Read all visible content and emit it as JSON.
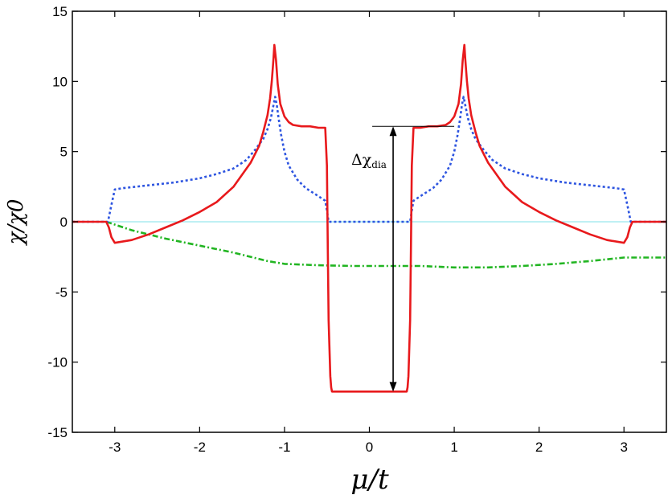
{
  "chart_data": {
    "type": "line",
    "title": "",
    "xlabel": "μ/t",
    "ylabel": "χ/χ0",
    "xlim": [
      -3.5,
      3.5
    ],
    "ylim": [
      -15,
      15
    ],
    "x_ticks": [
      -3,
      -2,
      -1,
      0,
      1,
      2,
      3
    ],
    "y_ticks": [
      -15,
      -10,
      -5,
      0,
      5,
      10,
      15
    ],
    "x_tick_labels": [
      "-3",
      "-2",
      "-1",
      "0",
      "1",
      "2",
      "3"
    ],
    "y_tick_labels": [
      "-15",
      "-10",
      "-5",
      "0",
      "5",
      "10",
      "15"
    ],
    "grid": false,
    "annotation": {
      "symbol": "Δχ",
      "subscript": "dia",
      "x": 0.28,
      "y_top": 6.8,
      "y_bottom": -12.1
    },
    "series": [
      {
        "color": "#e8191c",
        "style": "solid",
        "x": [
          -3.5,
          -3.1,
          -3.07,
          -3.04,
          -3.0,
          -2.8,
          -2.6,
          -2.4,
          -2.2,
          -2.0,
          -1.8,
          -1.6,
          -1.4,
          -1.3,
          -1.25,
          -1.2,
          -1.17,
          -1.15,
          -1.13,
          -1.12,
          -1.1,
          -1.08,
          -1.05,
          -1.0,
          -0.95,
          -0.9,
          -0.8,
          -0.7,
          -0.6,
          -0.52,
          -0.5,
          -0.49,
          -0.48,
          -0.46,
          -0.45,
          -0.44,
          -0.42,
          0.42,
          0.44,
          0.45,
          0.46,
          0.48,
          0.49,
          0.5,
          0.52,
          0.6,
          0.7,
          0.8,
          0.9,
          0.95,
          1.0,
          1.05,
          1.08,
          1.1,
          1.12,
          1.13,
          1.15,
          1.17,
          1.2,
          1.25,
          1.3,
          1.4,
          1.6,
          1.8,
          2.0,
          2.2,
          2.4,
          2.6,
          2.8,
          3.0,
          3.04,
          3.07,
          3.1,
          3.5
        ],
        "y": [
          0.0,
          0.0,
          -0.4,
          -1.1,
          -1.5,
          -1.3,
          -0.9,
          -0.4,
          0.1,
          0.7,
          1.4,
          2.5,
          4.2,
          5.4,
          6.4,
          7.6,
          8.8,
          10.0,
          11.6,
          12.6,
          11.5,
          9.8,
          8.4,
          7.5,
          7.1,
          6.9,
          6.8,
          6.8,
          6.7,
          6.7,
          4.0,
          -2.0,
          -7.0,
          -11.0,
          -11.8,
          -12.1,
          -12.1,
          -12.1,
          -12.1,
          -11.8,
          -11.0,
          -7.0,
          -2.0,
          4.0,
          6.7,
          6.7,
          6.8,
          6.8,
          6.9,
          7.1,
          7.5,
          8.4,
          9.8,
          11.5,
          12.6,
          11.6,
          10.0,
          8.8,
          7.6,
          6.4,
          5.4,
          4.2,
          2.5,
          1.4,
          0.7,
          0.1,
          -0.4,
          -0.9,
          -1.3,
          -1.5,
          -1.1,
          -0.4,
          0.0,
          0.0
        ]
      },
      {
        "color": "#2e55e0",
        "style": "dotted",
        "x": [
          -3.5,
          -3.08,
          -3.04,
          -3.0,
          -2.9,
          -2.6,
          -2.3,
          -2.0,
          -1.8,
          -1.6,
          -1.45,
          -1.35,
          -1.25,
          -1.2,
          -1.16,
          -1.13,
          -1.11,
          -1.09,
          -1.07,
          -1.04,
          -1.0,
          -0.95,
          -0.85,
          -0.75,
          -0.62,
          -0.52,
          -0.5,
          -0.48,
          0.48,
          0.5,
          0.52,
          0.62,
          0.75,
          0.85,
          0.95,
          1.0,
          1.04,
          1.07,
          1.09,
          1.11,
          1.13,
          1.16,
          1.2,
          1.25,
          1.35,
          1.45,
          1.6,
          1.8,
          2.0,
          2.3,
          2.6,
          2.9,
          3.0,
          3.04,
          3.08,
          3.5
        ],
        "y": [
          0.0,
          0.0,
          1.2,
          2.3,
          2.4,
          2.6,
          2.8,
          3.1,
          3.4,
          3.8,
          4.4,
          5.1,
          5.9,
          6.6,
          7.4,
          8.3,
          8.9,
          8.3,
          7.4,
          6.2,
          5.0,
          4.0,
          3.0,
          2.4,
          1.9,
          1.5,
          0.8,
          0.0,
          0.0,
          0.8,
          1.5,
          1.9,
          2.4,
          3.0,
          4.0,
          5.0,
          6.2,
          7.4,
          8.3,
          8.9,
          8.3,
          7.4,
          6.6,
          5.9,
          5.1,
          4.4,
          3.8,
          3.4,
          3.1,
          2.8,
          2.6,
          2.4,
          2.3,
          1.2,
          0.0,
          0.0
        ]
      },
      {
        "color": "#22b522",
        "style": "dashdot",
        "x": [
          -3.1,
          -2.8,
          -2.4,
          -2.0,
          -1.6,
          -1.2,
          -1.0,
          -0.6,
          -0.2,
          0.2,
          0.6,
          1.0,
          1.4,
          1.8,
          2.2,
          2.6,
          3.0,
          3.5
        ],
        "y": [
          0.0,
          -0.6,
          -1.2,
          -1.7,
          -2.2,
          -2.8,
          -3.0,
          -3.1,
          -3.15,
          -3.15,
          -3.15,
          -3.25,
          -3.25,
          -3.15,
          -3.0,
          -2.8,
          -2.55,
          -2.55
        ]
      },
      {
        "color": "#7fe0e8",
        "style": "solid",
        "x": [
          -3.5,
          3.5
        ],
        "y": [
          0.0,
          0.0
        ]
      }
    ]
  }
}
